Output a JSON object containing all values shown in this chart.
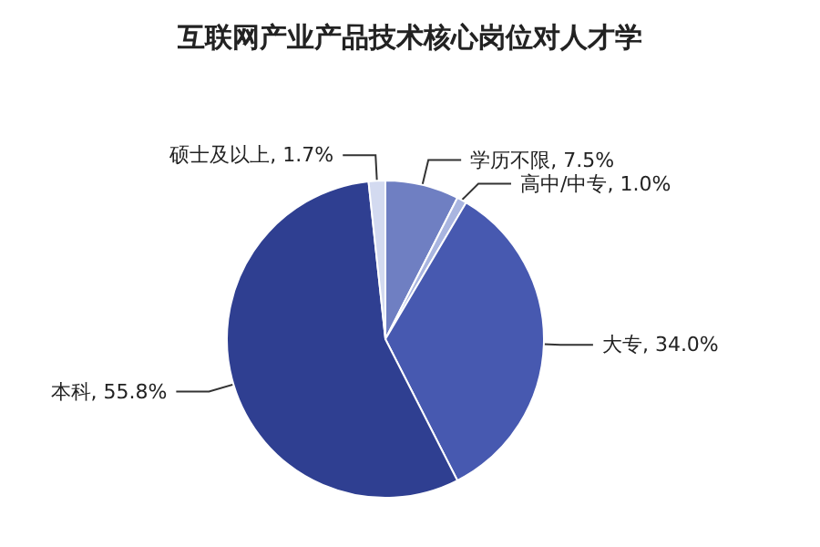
{
  "chart_data": {
    "type": "pie",
    "title": "互联网产业产品技术核心岗位对人才学",
    "categories": [
      "学历不限",
      "高中/中专",
      "大专",
      "本科",
      "硕士及以上"
    ],
    "values": [
      7.5,
      1.0,
      34.0,
      55.8,
      1.7
    ],
    "value_labels": [
      "7.5%",
      "1.0%",
      "34.0%",
      "55.8%",
      "1.7%"
    ],
    "colors": [
      "#6f7fc2",
      "#a9b5e0",
      "#4759b0",
      "#2f3f91",
      "#d3daf0"
    ]
  }
}
